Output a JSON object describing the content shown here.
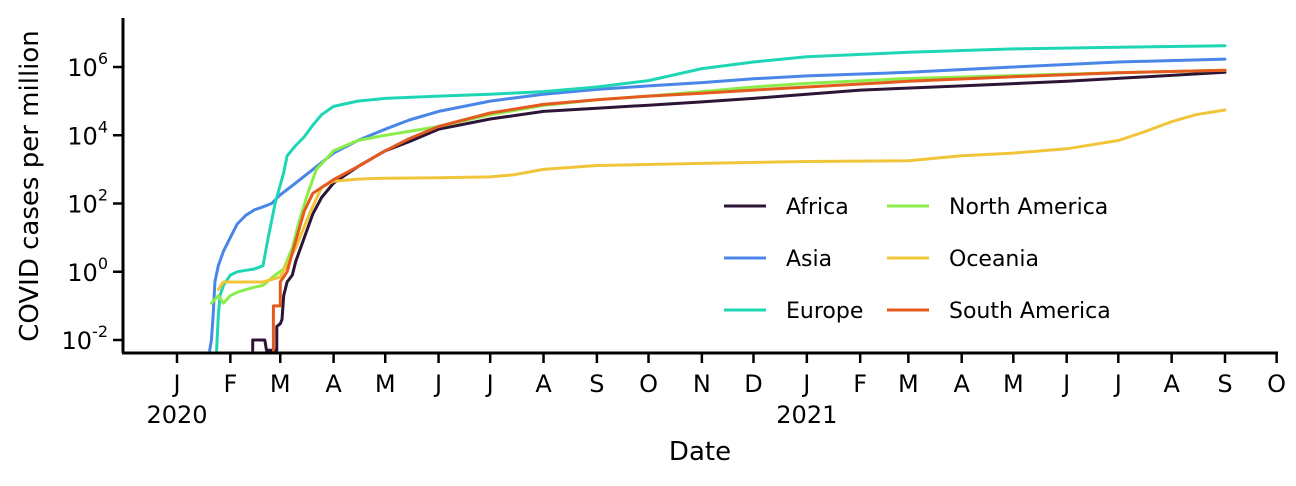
{
  "chart_data": {
    "type": "line",
    "xlabel": "Date",
    "ylabel": "COVID cases per million",
    "y_scale": "log10",
    "ylim": [
      0.005,
      30000000
    ],
    "xlim": [
      "2019-12-01",
      "2021-10-01"
    ],
    "x_ticks": [
      {
        "date": "2020-01-01",
        "label": "J",
        "year": "2020"
      },
      {
        "date": "2020-02-01",
        "label": "F"
      },
      {
        "date": "2020-03-01",
        "label": "M"
      },
      {
        "date": "2020-04-01",
        "label": "A"
      },
      {
        "date": "2020-05-01",
        "label": "M"
      },
      {
        "date": "2020-06-01",
        "label": "J"
      },
      {
        "date": "2020-07-01",
        "label": "J"
      },
      {
        "date": "2020-08-01",
        "label": "A"
      },
      {
        "date": "2020-09-01",
        "label": "S"
      },
      {
        "date": "2020-10-01",
        "label": "O"
      },
      {
        "date": "2020-11-01",
        "label": "N"
      },
      {
        "date": "2020-12-01",
        "label": "D"
      },
      {
        "date": "2021-01-01",
        "label": "J",
        "year": "2021"
      },
      {
        "date": "2021-02-01",
        "label": "F"
      },
      {
        "date": "2021-03-01",
        "label": "M"
      },
      {
        "date": "2021-04-01",
        "label": "A"
      },
      {
        "date": "2021-05-01",
        "label": "M"
      },
      {
        "date": "2021-06-01",
        "label": "J"
      },
      {
        "date": "2021-07-01",
        "label": "J"
      },
      {
        "date": "2021-08-01",
        "label": "A"
      },
      {
        "date": "2021-09-01",
        "label": "S"
      },
      {
        "date": "2021-10-01",
        "label": "O"
      }
    ],
    "y_ticks": [
      {
        "value": 0.01,
        "base": "10",
        "exp": "-2"
      },
      {
        "value": 1,
        "base": "10",
        "exp": "0"
      },
      {
        "value": 100,
        "base": "10",
        "exp": "2"
      },
      {
        "value": 10000,
        "base": "10",
        "exp": "4"
      },
      {
        "value": 1000000,
        "base": "10",
        "exp": "6"
      }
    ],
    "legend": {
      "placement": "inside-right",
      "columns": 2
    },
    "series": [
      {
        "name": "Africa",
        "color": "#2d1537",
        "points": [
          [
            "2020-02-14",
            0.005
          ],
          [
            "2020-02-14",
            0.01
          ],
          [
            "2020-02-21",
            0.01
          ],
          [
            "2020-02-22",
            0.005
          ],
          [
            "2020-02-28",
            0.005
          ],
          [
            "2020-02-28",
            0.025
          ],
          [
            "2020-03-01",
            0.03
          ],
          [
            "2020-03-02",
            0.04
          ],
          [
            "2020-03-03",
            0.2
          ],
          [
            "2020-03-05",
            0.5
          ],
          [
            "2020-03-08",
            0.8
          ],
          [
            "2020-03-10",
            2
          ],
          [
            "2020-03-15",
            10
          ],
          [
            "2020-03-20",
            50
          ],
          [
            "2020-03-25",
            150
          ],
          [
            "2020-04-01",
            400
          ],
          [
            "2020-04-15",
            1200
          ],
          [
            "2020-05-01",
            3500
          ],
          [
            "2020-05-15",
            6500
          ],
          [
            "2020-06-01",
            15000
          ],
          [
            "2020-07-01",
            30000
          ],
          [
            "2020-08-01",
            50000
          ],
          [
            "2020-09-01",
            62000
          ],
          [
            "2020-10-01",
            76000
          ],
          [
            "2020-11-01",
            95000
          ],
          [
            "2020-12-01",
            120000
          ],
          [
            "2021-01-01",
            160000
          ],
          [
            "2021-02-01",
            210000
          ],
          [
            "2021-04-01",
            280000
          ],
          [
            "2021-06-01",
            380000
          ],
          [
            "2021-09-01",
            700000
          ]
        ]
      },
      {
        "name": "Asia",
        "color": "#4a86e8",
        "points": [
          [
            "2020-01-20",
            0.005
          ],
          [
            "2020-01-21",
            0.01
          ],
          [
            "2020-01-22",
            0.05
          ],
          [
            "2020-01-23",
            0.5
          ],
          [
            "2020-01-25",
            1.5
          ],
          [
            "2020-01-28",
            4
          ],
          [
            "2020-02-01",
            10
          ],
          [
            "2020-02-05",
            25
          ],
          [
            "2020-02-10",
            45
          ],
          [
            "2020-02-15",
            65
          ],
          [
            "2020-02-20",
            80
          ],
          [
            "2020-02-25",
            100
          ],
          [
            "2020-03-01",
            180
          ],
          [
            "2020-03-10",
            400
          ],
          [
            "2020-03-20",
            1000
          ],
          [
            "2020-04-01",
            3000
          ],
          [
            "2020-04-15",
            7000
          ],
          [
            "2020-05-01",
            15000
          ],
          [
            "2020-05-15",
            28000
          ],
          [
            "2020-06-01",
            50000
          ],
          [
            "2020-07-01",
            100000
          ],
          [
            "2020-08-01",
            160000
          ],
          [
            "2020-09-01",
            220000
          ],
          [
            "2020-10-01",
            280000
          ],
          [
            "2020-11-01",
            350000
          ],
          [
            "2020-12-01",
            450000
          ],
          [
            "2021-01-01",
            550000
          ],
          [
            "2021-03-01",
            700000
          ],
          [
            "2021-05-01",
            1000000
          ],
          [
            "2021-07-01",
            1400000
          ],
          [
            "2021-09-01",
            1700000
          ]
        ]
      },
      {
        "name": "Europe",
        "color": "#1fd6b4",
        "points": [
          [
            "2020-01-24",
            0.005
          ],
          [
            "2020-01-25",
            0.05
          ],
          [
            "2020-01-26",
            0.2
          ],
          [
            "2020-01-28",
            0.4
          ],
          [
            "2020-02-01",
            0.8
          ],
          [
            "2020-02-05",
            1
          ],
          [
            "2020-02-10",
            1.1
          ],
          [
            "2020-02-15",
            1.2
          ],
          [
            "2020-02-20",
            1.5
          ],
          [
            "2020-02-23",
            10
          ],
          [
            "2020-02-27",
            100
          ],
          [
            "2020-03-03",
            800
          ],
          [
            "2020-03-05",
            2500
          ],
          [
            "2020-03-10",
            5000
          ],
          [
            "2020-03-15",
            9000
          ],
          [
            "2020-03-20",
            20000
          ],
          [
            "2020-03-25",
            40000
          ],
          [
            "2020-04-01",
            70000
          ],
          [
            "2020-04-15",
            100000
          ],
          [
            "2020-05-01",
            120000
          ],
          [
            "2020-06-01",
            140000
          ],
          [
            "2020-07-01",
            160000
          ],
          [
            "2020-08-01",
            190000
          ],
          [
            "2020-09-01",
            260000
          ],
          [
            "2020-10-01",
            400000
          ],
          [
            "2020-11-01",
            900000
          ],
          [
            "2020-12-01",
            1400000
          ],
          [
            "2021-01-01",
            2000000
          ],
          [
            "2021-03-01",
            2700000
          ],
          [
            "2021-05-01",
            3400000
          ],
          [
            "2021-07-01",
            3800000
          ],
          [
            "2021-09-01",
            4200000
          ]
        ]
      },
      {
        "name": "North America",
        "color": "#8aed4a",
        "points": [
          [
            "2020-01-21",
            0.12
          ],
          [
            "2020-01-25",
            0.2
          ],
          [
            "2020-01-28",
            0.12
          ],
          [
            "2020-02-01",
            0.2
          ],
          [
            "2020-02-05",
            0.25
          ],
          [
            "2020-02-10",
            0.3
          ],
          [
            "2020-02-15",
            0.35
          ],
          [
            "2020-02-20",
            0.4
          ],
          [
            "2020-02-27",
            0.8
          ],
          [
            "2020-03-03",
            1.2
          ],
          [
            "2020-03-08",
            5
          ],
          [
            "2020-03-12",
            30
          ],
          [
            "2020-03-17",
            200
          ],
          [
            "2020-03-22",
            1000
          ],
          [
            "2020-04-01",
            3500
          ],
          [
            "2020-04-15",
            7000
          ],
          [
            "2020-05-01",
            10000
          ],
          [
            "2020-06-01",
            18000
          ],
          [
            "2020-07-01",
            40000
          ],
          [
            "2020-08-01",
            75000
          ],
          [
            "2020-09-01",
            110000
          ],
          [
            "2020-10-01",
            140000
          ],
          [
            "2020-11-01",
            190000
          ],
          [
            "2020-12-01",
            260000
          ],
          [
            "2021-01-01",
            330000
          ],
          [
            "2021-03-01",
            460000
          ],
          [
            "2021-05-01",
            560000
          ],
          [
            "2021-07-01",
            680000
          ],
          [
            "2021-09-01",
            800000
          ]
        ]
      },
      {
        "name": "Oceania",
        "color": "#f0c53a",
        "points": [
          [
            "2020-01-25",
            0.3
          ],
          [
            "2020-01-28",
            0.5
          ],
          [
            "2020-02-01",
            0.5
          ],
          [
            "2020-02-10",
            0.5
          ],
          [
            "2020-02-20",
            0.5
          ],
          [
            "2020-03-01",
            0.7
          ],
          [
            "2020-03-10",
            5
          ],
          [
            "2020-03-18",
            50
          ],
          [
            "2020-03-25",
            300
          ],
          [
            "2020-04-01",
            450
          ],
          [
            "2020-04-15",
            520
          ],
          [
            "2020-05-01",
            550
          ],
          [
            "2020-06-01",
            570
          ],
          [
            "2020-07-01",
            600
          ],
          [
            "2020-07-15",
            700
          ],
          [
            "2020-08-01",
            1000
          ],
          [
            "2020-09-01",
            1300
          ],
          [
            "2020-11-01",
            1500
          ],
          [
            "2021-01-01",
            1700
          ],
          [
            "2021-03-01",
            1800
          ],
          [
            "2021-04-01",
            2500
          ],
          [
            "2021-05-01",
            3000
          ],
          [
            "2021-06-01",
            4000
          ],
          [
            "2021-07-01",
            7000
          ],
          [
            "2021-07-15",
            12000
          ],
          [
            "2021-08-01",
            25000
          ],
          [
            "2021-08-15",
            40000
          ],
          [
            "2021-09-01",
            55000
          ]
        ]
      },
      {
        "name": "South America",
        "color": "#e55a1e",
        "points": [
          [
            "2020-02-26",
            0.005
          ],
          [
            "2020-02-26",
            0.1
          ],
          [
            "2020-03-01",
            0.1
          ],
          [
            "2020-03-01",
            0.5
          ],
          [
            "2020-03-05",
            1
          ],
          [
            "2020-03-10",
            8
          ],
          [
            "2020-03-15",
            60
          ],
          [
            "2020-03-20",
            200
          ],
          [
            "2020-04-01",
            500
          ],
          [
            "2020-04-15",
            1200
          ],
          [
            "2020-05-01",
            3500
          ],
          [
            "2020-05-15",
            8000
          ],
          [
            "2020-06-01",
            18000
          ],
          [
            "2020-07-01",
            45000
          ],
          [
            "2020-08-01",
            80000
          ],
          [
            "2020-09-01",
            110000
          ],
          [
            "2020-10-01",
            140000
          ],
          [
            "2020-11-01",
            170000
          ],
          [
            "2020-12-01",
            210000
          ],
          [
            "2021-01-01",
            260000
          ],
          [
            "2021-03-01",
            380000
          ],
          [
            "2021-05-01",
            520000
          ],
          [
            "2021-07-01",
            680000
          ],
          [
            "2021-09-01",
            800000
          ]
        ]
      }
    ]
  }
}
